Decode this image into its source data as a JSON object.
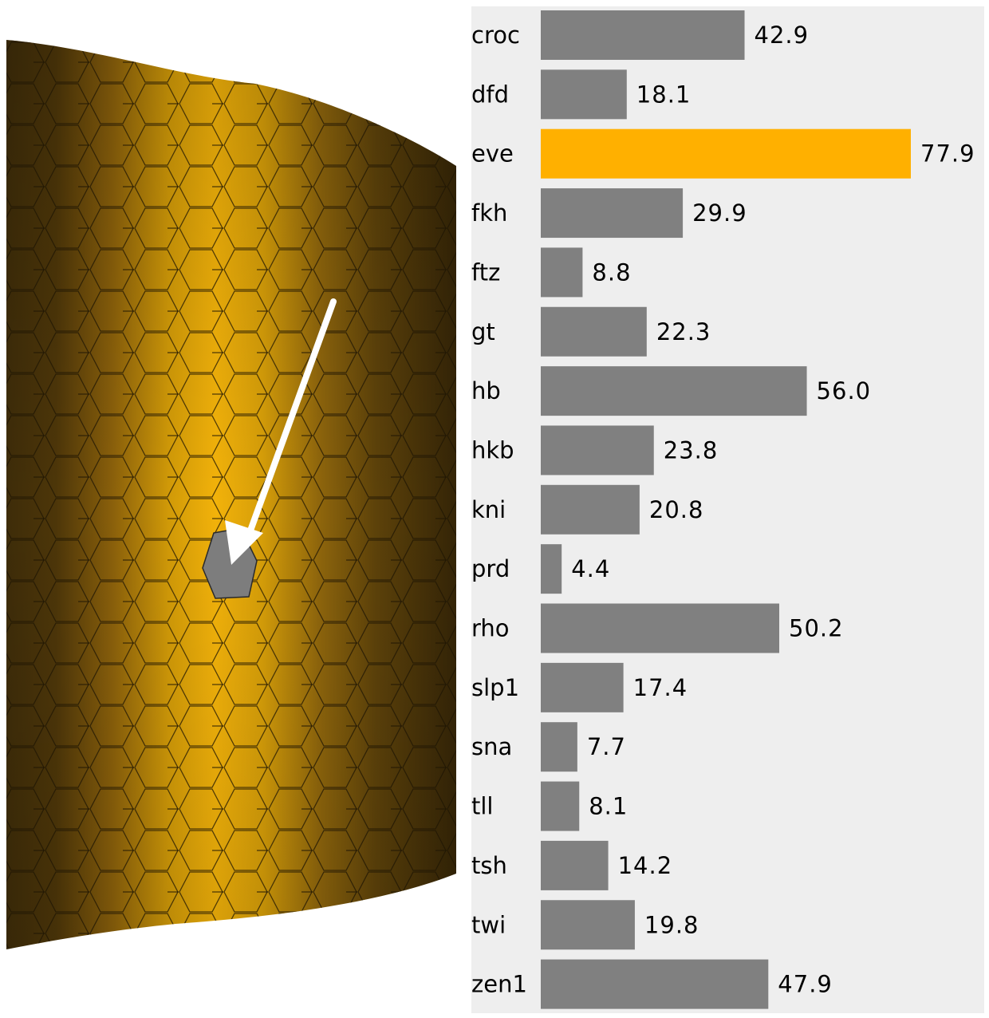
{
  "chart_data": {
    "type": "bar",
    "orientation": "horizontal",
    "categories": [
      "croc",
      "dfd",
      "eve",
      "fkh",
      "ftz",
      "gt",
      "hb",
      "hkb",
      "kni",
      "prd",
      "rho",
      "slp1",
      "sna",
      "tll",
      "tsh",
      "twi",
      "zen1"
    ],
    "values": [
      42.9,
      18.1,
      77.9,
      29.9,
      8.8,
      22.3,
      56.0,
      23.8,
      20.8,
      4.4,
      50.2,
      17.4,
      7.7,
      8.1,
      14.2,
      19.8,
      47.9
    ],
    "value_labels": [
      "42.9",
      "18.1",
      "77.9",
      "29.9",
      "8.8",
      "22.3",
      "56.0",
      "23.8",
      "20.8",
      "4.4",
      "50.2",
      "17.4",
      "7.7",
      "8.1",
      "14.2",
      "19.8",
      "47.9"
    ],
    "highlighted_category": "eve",
    "xlim": [
      0,
      77.9
    ],
    "grid": false,
    "legend": "none"
  },
  "colors": {
    "bar_default": "#808080",
    "bar_highlight": "#ffb000",
    "chart_background": "#eeeeee",
    "embryo_bright": "#f2b20a",
    "embryo_dark": "#2e2006",
    "cell_edges": "#1e1503",
    "selected_cell": "#7d7d7d",
    "arrow": "#ffffff"
  },
  "embryo_view": {
    "selected_cell_color_name": "grey",
    "arrow_icon": "pointer-arrow-icon"
  }
}
